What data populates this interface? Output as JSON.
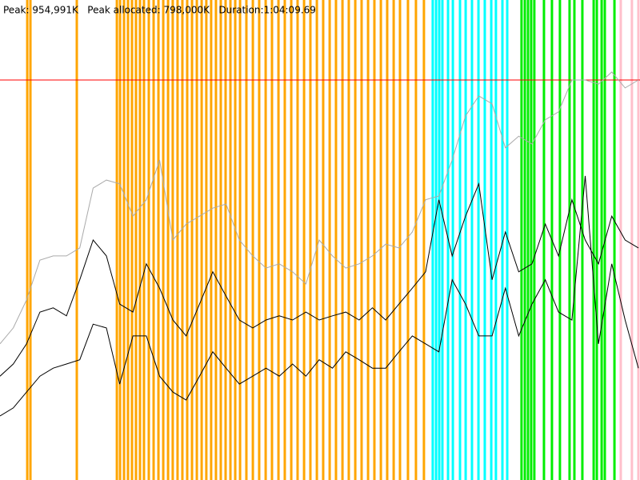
{
  "chart_data": {
    "type": "line",
    "title": "Peak: 954,991K   Peak allocated: 798,000K   Duration:1:04:09.69",
    "xlim": [
      0,
      3849.69
    ],
    "ylim": [
      0,
      1145989
    ],
    "peak_line": {
      "value": 954991,
      "color": "#ff0000"
    },
    "x": [
      0,
      80,
      160,
      240,
      320,
      400,
      480,
      560,
      640,
      720,
      800,
      880,
      960,
      1040,
      1120,
      1200,
      1280,
      1360,
      1440,
      1520,
      1600,
      1680,
      1760,
      1840,
      1920,
      2000,
      2080,
      2160,
      2240,
      2320,
      2400,
      2480,
      2560,
      2640,
      2720,
      2800,
      2880,
      2960,
      3040,
      3120,
      3200,
      3280,
      3360,
      3440,
      3520,
      3600,
      3680,
      3760,
      3840
    ],
    "markers": [
      {
        "color": "#ffa500",
        "x": [
          164,
          183,
          462,
          703,
          722,
          746,
          770,
          794,
          818,
          842,
          866,
          895,
          924,
          953,
          982,
          1011,
          1039,
          1068,
          1097,
          1126,
          1155,
          1184,
          1213,
          1241,
          1270,
          1299,
          1328,
          1357,
          1386,
          1415,
          1444,
          1482,
          1521,
          1559,
          1598,
          1636,
          1675,
          1713,
          1752,
          1790,
          1829,
          1867,
          1906,
          1944,
          1983,
          2021,
          2060,
          2098,
          2137,
          2175,
          2214,
          2252,
          2291,
          2329,
          2368,
          2406,
          2454,
          2502,
          2550
        ]
      },
      {
        "color": "#00ffff",
        "x": [
          2603,
          2623,
          2642,
          2661,
          2695,
          2724,
          2767,
          2801,
          2839,
          2878,
          2916,
          2955,
          2983,
          3022,
          3051
        ]
      },
      {
        "color": "#00ee00",
        "x": [
          3137,
          3157,
          3176,
          3195,
          3214,
          3272,
          3320,
          3368,
          3426,
          3455,
          3503,
          3571,
          3590,
          3619,
          3638,
          3696
        ]
      },
      {
        "color": "#ffc0cb",
        "x": [
          3734,
          3801,
          3840
        ]
      }
    ],
    "series": [
      {
        "color": "#aaaaaa",
        "values": [
          325000,
          363000,
          430000,
          525000,
          535000,
          535000,
          554000,
          697000,
          716000,
          707000,
          630000,
          669000,
          764000,
          573000,
          611000,
          630000,
          649000,
          659000,
          573000,
          535000,
          506000,
          516000,
          497000,
          468000,
          573000,
          535000,
          506000,
          516000,
          535000,
          563000,
          554000,
          592000,
          669000,
          678000,
          764000,
          869000,
          917000,
          898000,
          793000,
          821000,
          802000,
          860000,
          879000,
          955000,
          955000,
          945000,
          974000,
          936000,
          955000
        ]
      },
      {
        "color": "#000000",
        "values": [
          248000,
          277000,
          325000,
          401000,
          411000,
          392000,
          478000,
          573000,
          535000,
          420000,
          401000,
          516000,
          458000,
          382000,
          344000,
          420000,
          497000,
          439000,
          382000,
          363000,
          382000,
          392000,
          382000,
          401000,
          382000,
          392000,
          401000,
          382000,
          411000,
          382000,
          420000,
          458000,
          497000,
          669000,
          535000,
          630000,
          707000,
          478000,
          592000,
          497000,
          516000,
          611000,
          535000,
          669000,
          573000,
          516000,
          630000,
          573000,
          554000
        ]
      },
      {
        "color": "#000000",
        "values": [
          153000,
          172000,
          210000,
          248000,
          267000,
          277000,
          287000,
          372000,
          363000,
          229000,
          344000,
          344000,
          248000,
          210000,
          191000,
          248000,
          306000,
          267000,
          229000,
          248000,
          267000,
          248000,
          277000,
          248000,
          287000,
          267000,
          306000,
          287000,
          267000,
          267000,
          306000,
          344000,
          325000,
          306000,
          478000,
          420000,
          344000,
          344000,
          458000,
          344000,
          420000,
          478000,
          401000,
          382000,
          726000,
          325000,
          516000,
          382000,
          267000
        ]
      }
    ]
  }
}
